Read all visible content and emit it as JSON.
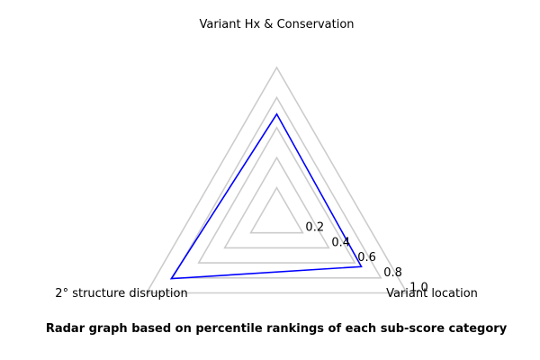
{
  "chart_data": {
    "type": "radar",
    "axes": [
      "Variant Hx & Conservation",
      "Variant location",
      "2° structure disruption"
    ],
    "series": [
      {
        "values": [
          0.69,
          0.65,
          0.81
        ],
        "color": "#0000ff"
      }
    ],
    "rings": [
      0.2,
      0.4,
      0.6,
      0.8,
      1.0
    ],
    "tick_labels": [
      "0.2",
      "0.4",
      "0.6",
      "0.8",
      "1.0"
    ],
    "range": [
      0,
      1.0
    ],
    "grid_color": "#cccccc",
    "caption": "Radar graph based on percentile rankings of each sub-score category"
  }
}
